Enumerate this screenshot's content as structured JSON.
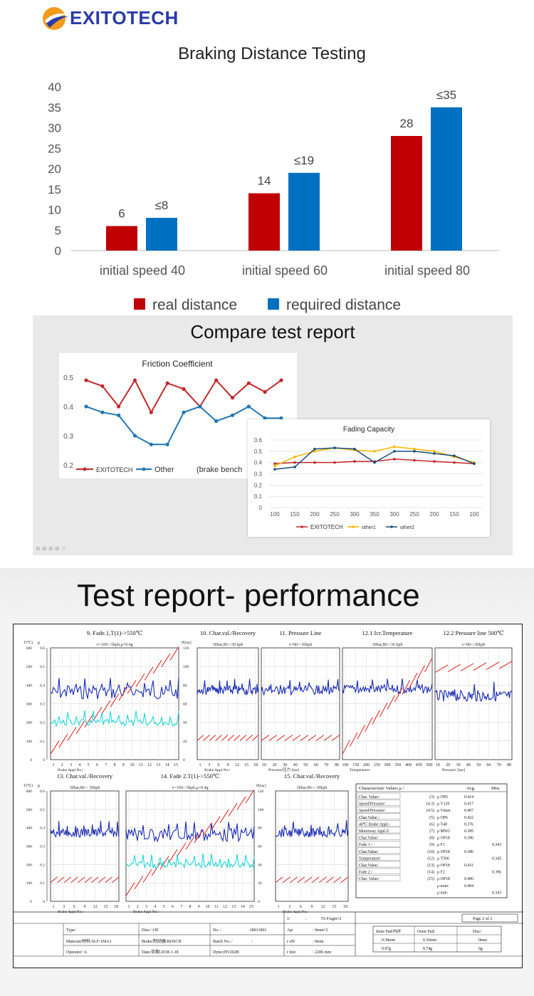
{
  "brand": {
    "name": "EXITOTECH",
    "logo_colors": [
      "#f39a1b",
      "#2a3aa8"
    ]
  },
  "chart_data": [
    {
      "type": "bar",
      "title": "Braking Distance Testing",
      "categories": [
        "initial speed 40",
        "initial speed 60",
        "initial speed 80"
      ],
      "series": [
        {
          "name": "real distance",
          "color": "#c00000",
          "values": [
            6,
            14,
            28
          ],
          "labels": [
            "6",
            "14",
            "28"
          ]
        },
        {
          "name": "required distance",
          "color": "#0070c0",
          "values": [
            8,
            19,
            35
          ],
          "labels": [
            "≤8",
            "≤19",
            "≤35"
          ]
        }
      ],
      "yticks": [
        "0",
        "5",
        "10",
        "15",
        "20",
        "25",
        "30",
        "35",
        "40"
      ],
      "ylim": [
        0,
        40
      ],
      "legend": "bottom",
      "grid": false
    },
    {
      "type": "line",
      "title": "Friction Coefficient",
      "x": [
        1,
        2,
        3,
        4,
        5,
        6,
        7,
        8,
        9,
        10,
        11,
        12,
        13
      ],
      "series": [
        {
          "name": "EXITOTECH",
          "color": "#c0282d",
          "values": [
            0.49,
            0.47,
            0.4,
            0.49,
            0.38,
            0.48,
            0.46,
            0.4,
            0.49,
            0.43,
            0.48,
            0.45,
            0.49
          ]
        },
        {
          "name": "Other",
          "color": "#1f77b4",
          "values": [
            0.4,
            0.38,
            0.37,
            0.3,
            0.27,
            0.27,
            0.38,
            0.4,
            0.35,
            0.37,
            0.4,
            0.36,
            0.36
          ]
        }
      ],
      "yticks": [
        "0.2",
        "0.3",
        "0.4",
        "0.5"
      ],
      "ylim": [
        0.2,
        0.5
      ],
      "legend_extra": "(brake bench",
      "legend": "bottom"
    },
    {
      "type": "line",
      "title": "Fading Capacity",
      "categories": [
        "100",
        "150",
        "200",
        "250",
        "300",
        "350",
        "300",
        "250",
        "200",
        "150",
        "100"
      ],
      "series": [
        {
          "name": "EXITOTECH",
          "color": "#c0282d",
          "values": [
            0.39,
            0.4,
            0.4,
            0.4,
            0.41,
            0.41,
            0.43,
            0.42,
            0.41,
            0.4,
            0.39
          ]
        },
        {
          "name": "other1",
          "color": "#f5b800",
          "values": [
            0.37,
            0.45,
            0.5,
            0.53,
            0.51,
            0.5,
            0.54,
            0.52,
            0.5,
            0.45,
            0.4
          ]
        },
        {
          "name": "other2",
          "color": "#1f4e79",
          "values": [
            0.34,
            0.36,
            0.52,
            0.53,
            0.52,
            0.4,
            0.5,
            0.5,
            0.48,
            0.46,
            0.39
          ]
        }
      ],
      "yticks": [
        "0",
        "0.1",
        "0.2",
        "0.3",
        "0.4",
        "0.5",
        "0.6"
      ],
      "ylim": [
        0,
        0.6
      ],
      "legend": "bottom"
    }
  ],
  "compare": {
    "title": "Compare test report",
    "footer": "⊘ ⊘ ⊘ ⊘ ☆"
  },
  "performance": {
    "title": "Test report- performance",
    "panels_top": [
      {
        "title": "9.  Fade.1,T(1)->550℃",
        "sub": "v=100->5kph,μ=0.4g",
        "xlabel": "Brake Appl.No./",
        "xticks": [
          "1",
          "2",
          "3",
          "4",
          "5",
          "6",
          "7",
          "8",
          "9",
          "10",
          "11",
          "12",
          "13",
          "14",
          "15"
        ]
      },
      {
        "title": "10.  Char.val./Recovery",
        "sub": "30bar,80->30 kph",
        "xlabel": "Brake Appl.No./",
        "xticks": [
          "1",
          "3",
          "6",
          "9",
          "12",
          "15",
          "18"
        ]
      },
      {
        "title": "11.  Pressure  Line",
        "sub": "v=80->30kph",
        "xlabel": "Pressure/压力 [bar]",
        "xticks": [
          "10",
          "20",
          "30",
          "40",
          "50",
          "60",
          "70",
          "80"
        ]
      },
      {
        "title": "12.1 Icr.Temperature",
        "sub": "30bar,80->30 kph",
        "xlabel": "Temperature/",
        "xticks": [
          "100",
          "150",
          "200",
          "250",
          "300",
          "350",
          "400",
          "450",
          "500"
        ]
      },
      {
        "title": "12.2 Pressure line 500℃",
        "sub": "v=80->30kph",
        "xlabel": "Pressure/     [bar]",
        "xticks": [
          "10",
          "20",
          "30",
          "40",
          "50",
          "60",
          "70",
          "80"
        ]
      }
    ],
    "panels_bottom": [
      {
        "title": "13.  Char.val./Recovery",
        "sub": "30bar,80-> 30kph",
        "xlabel": "Brake Appl.No./",
        "xticks": [
          "1",
          "3",
          "6",
          "9",
          "12",
          "15",
          "18"
        ]
      },
      {
        "title": "14.  Fade 2.T(1)->550℃",
        "sub": "v=100->5kph,μ=0.4g",
        "xlabel": "Brake Appl.No./",
        "xticks": [
          "1",
          "2",
          "3",
          "4",
          "5",
          "6",
          "7",
          "8",
          "9",
          "10",
          "11",
          "12",
          "13",
          "14",
          "15"
        ]
      },
      {
        "title": "15.  Char.val./Recovery",
        "sub": "30bar,80-> 30kph",
        "xlabel": "Brake Appl.No./",
        "xticks": [
          "1",
          "3",
          "6",
          "9",
          "12",
          "15",
          "18"
        ]
      }
    ],
    "left_axis": {
      "t_label": "T(℃)",
      "mu_label": "μ",
      "t_ticks": [
        "600",
        "500",
        "400",
        "300",
        "200",
        "100",
        "0"
      ],
      "mu_ticks": [
        "0.6",
        "0.5",
        "0.4",
        "0.3",
        "0.2",
        "0.1",
        "0"
      ]
    },
    "right_axis": {
      "p_label": "P[bar]",
      "p_ticks": [
        "120",
        "100",
        "80",
        "60",
        "40",
        "20",
        "0"
      ]
    },
    "char_table": {
      "header": [
        "Characteristic Values  μ  /",
        "",
        "Avg.",
        "Min."
      ],
      "rows": [
        [
          "Char. Value/",
          "(3)",
          "μ OP6",
          "0.414",
          ""
        ],
        [
          "Speed/Pressure/",
          "(4.3)",
          "μ V120",
          "0.417",
          ""
        ],
        [
          "Speed/Pressure/",
          "(4.5)",
          "μ Vmax",
          "0.407",
          ""
        ],
        [
          "Char.Value /",
          "(5)",
          "μ OP6",
          "0.422",
          ""
        ],
        [
          "40℃ Brake Appl./",
          "(6)",
          "μ T40",
          "0.376",
          ""
        ],
        [
          "Motorway Appl.2/",
          "(7)",
          "μ MW2",
          "0.385",
          ""
        ],
        [
          "Char.Value/",
          "(8)",
          "μ OP18",
          "0.396",
          ""
        ],
        [
          "Fade 1  /",
          "(9)",
          "μ F1",
          "",
          "0.343"
        ],
        [
          "Char.Value/",
          "(10)",
          "μ OP18",
          "0.386",
          ""
        ],
        [
          "Temperature/",
          "(12)",
          "μ T500",
          "",
          "0.345"
        ],
        [
          "Char.Value/",
          "(13)",
          "μ OP18",
          "0.431",
          ""
        ],
        [
          "Fade 2  /",
          "(14)",
          "μ F2",
          "",
          "0.396"
        ],
        [
          "Char. Value/",
          "(15)",
          "μ OP18",
          "0.406",
          ""
        ],
        [
          "",
          "",
          "μ nom:",
          "0.404",
          ""
        ],
        [
          "",
          "",
          "μ min:",
          "",
          "0.343"
        ]
      ]
    },
    "footer": {
      "row1": [
        "1/",
        ":",
        "55.4 kgm^2",
        "Page 2 of 2"
      ],
      "type_label": "Type/",
      "disc_label": "Disc/      :OE",
      "no_label": "No. /",
      "no_value": ":18011801",
      "ap_label": "Ap/",
      "ap_value": ":    0mm^2",
      "material": "Material/材料:SLF-1MA1",
      "brake": "Brake/制动器:BOSCH",
      "batch": "Batch No. /",
      "batch_value": ":",
      "reff": "r eff/",
      "reff_value": ":  0mm",
      "operator": "Operator/      :L",
      "date": "Date/日期:2018-1-18",
      "dyno": "Dyno:HV202B",
      "rtire": "r tire/",
      "rtire_value": ":  2206 mm",
      "pad_table": {
        "headers": [
          "Inner Pad/内片",
          "Outer Pad/",
          "Disc/"
        ],
        "row1": [
          "0.38mm",
          "0.36mm",
          "0mm"
        ],
        "row2": [
          "9.97g",
          "8.74g",
          "6g"
        ]
      }
    }
  }
}
